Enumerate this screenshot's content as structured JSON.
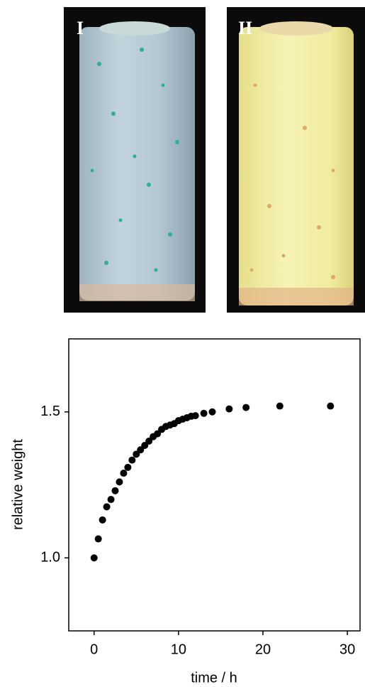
{
  "panels": [
    {
      "label": "I"
    },
    {
      "label": "II"
    }
  ],
  "chart_data": {
    "type": "scatter",
    "x_label": "time / h",
    "y_label": "relative weight",
    "x": [
      0,
      0.5,
      1,
      1.5,
      2,
      2.5,
      3,
      3.5,
      4,
      4.5,
      5,
      5.5,
      6,
      6.5,
      7,
      7.5,
      8,
      8.5,
      9,
      9.5,
      10,
      10.5,
      11,
      11.5,
      12,
      13,
      14,
      16,
      18,
      22,
      28
    ],
    "values": [
      1.0,
      1.065,
      1.13,
      1.175,
      1.2,
      1.23,
      1.26,
      1.29,
      1.31,
      1.335,
      1.355,
      1.37,
      1.385,
      1.4,
      1.415,
      1.425,
      1.44,
      1.45,
      1.455,
      1.46,
      1.47,
      1.475,
      1.48,
      1.485,
      1.487,
      1.495,
      1.5,
      1.51,
      1.515,
      1.52,
      1.52
    ],
    "color": "#000000",
    "xlim": [
      -3,
      31.5
    ],
    "ylim": [
      0.75,
      1.75
    ],
    "xticks": [
      0,
      10,
      20,
      30
    ],
    "yticks": [
      {
        "value": 1,
        "label": "1.0"
      },
      {
        "value": 1.5,
        "label": "1.5"
      }
    ]
  }
}
